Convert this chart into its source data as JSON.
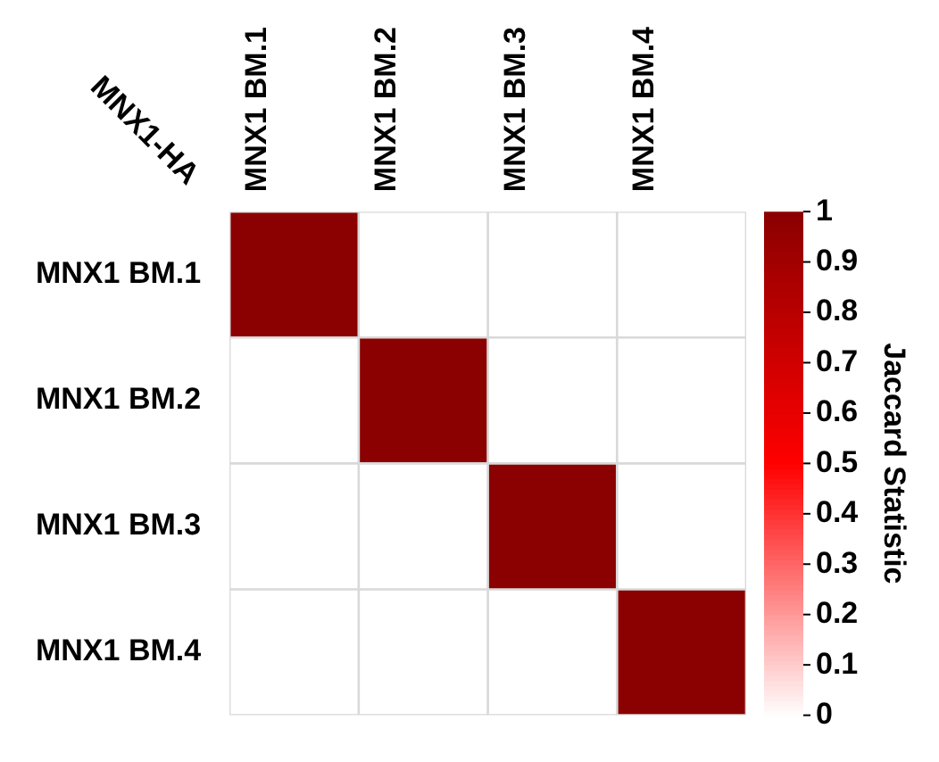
{
  "chart_data": {
    "type": "heatmap",
    "ylabel": "MNX1-HA",
    "clabel": "Jaccard Statistic",
    "categories": [
      "MNX1 BM.1",
      "MNX1 BM.2",
      "MNX1 BM.3",
      "MNX1 BM.4"
    ],
    "y_categories": [
      "MNX1 BM.1",
      "MNX1 BM.2",
      "MNX1 BM.3",
      "MNX1 BM.4"
    ],
    "cells": [
      [
        1,
        0,
        0,
        0
      ],
      [
        0,
        1,
        0,
        0
      ],
      [
        0,
        0,
        1,
        0
      ],
      [
        0,
        0,
        0,
        1
      ]
    ],
    "clim": [
      0,
      1
    ],
    "cticks": [
      0,
      0.1,
      0.2,
      0.3,
      0.4,
      0.5,
      0.6,
      0.7,
      0.8,
      0.9,
      1
    ]
  }
}
